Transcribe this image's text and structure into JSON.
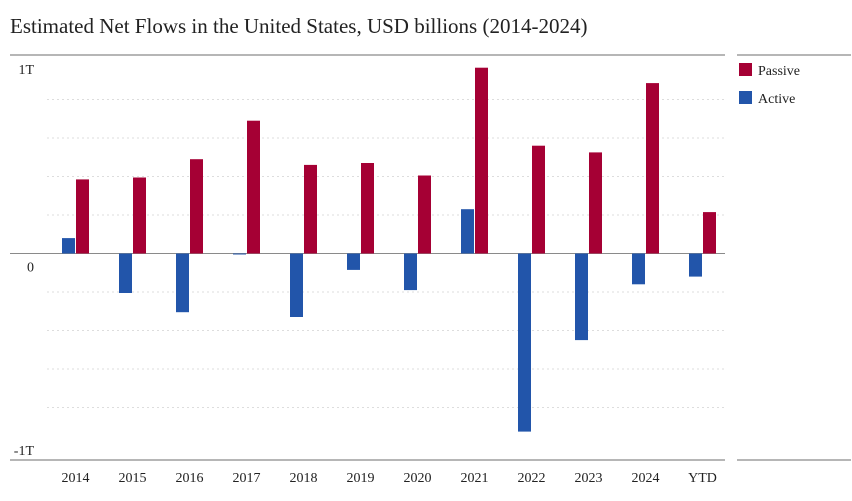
{
  "chart_data": {
    "type": "bar",
    "title": "Estimated Net Flows in the United States, USD billions (2014-2024)",
    "xlabel": "",
    "ylabel": "",
    "categories": [
      "2014",
      "2015",
      "2016",
      "2017",
      "2018",
      "2019",
      "2020",
      "2021",
      "2022",
      "2023",
      "2024",
      "YTD"
    ],
    "series": [
      {
        "name": "Active",
        "color": "#2255aa",
        "values": [
          80,
          -205,
          -305,
          -5,
          -330,
          -85,
          -190,
          230,
          -925,
          -450,
          -160,
          -120
        ]
      },
      {
        "name": "Passive",
        "color": "#a50034",
        "values": [
          385,
          395,
          490,
          690,
          460,
          470,
          405,
          965,
          560,
          525,
          885,
          215
        ]
      }
    ],
    "ylim": [
      -1000,
      1000
    ],
    "yticks": [
      {
        "value": 1000,
        "label": "1T"
      },
      {
        "value": 0,
        "label": "0"
      },
      {
        "value": -1000,
        "label": "-1T"
      }
    ],
    "legend_position": "top-right",
    "grid": true
  }
}
